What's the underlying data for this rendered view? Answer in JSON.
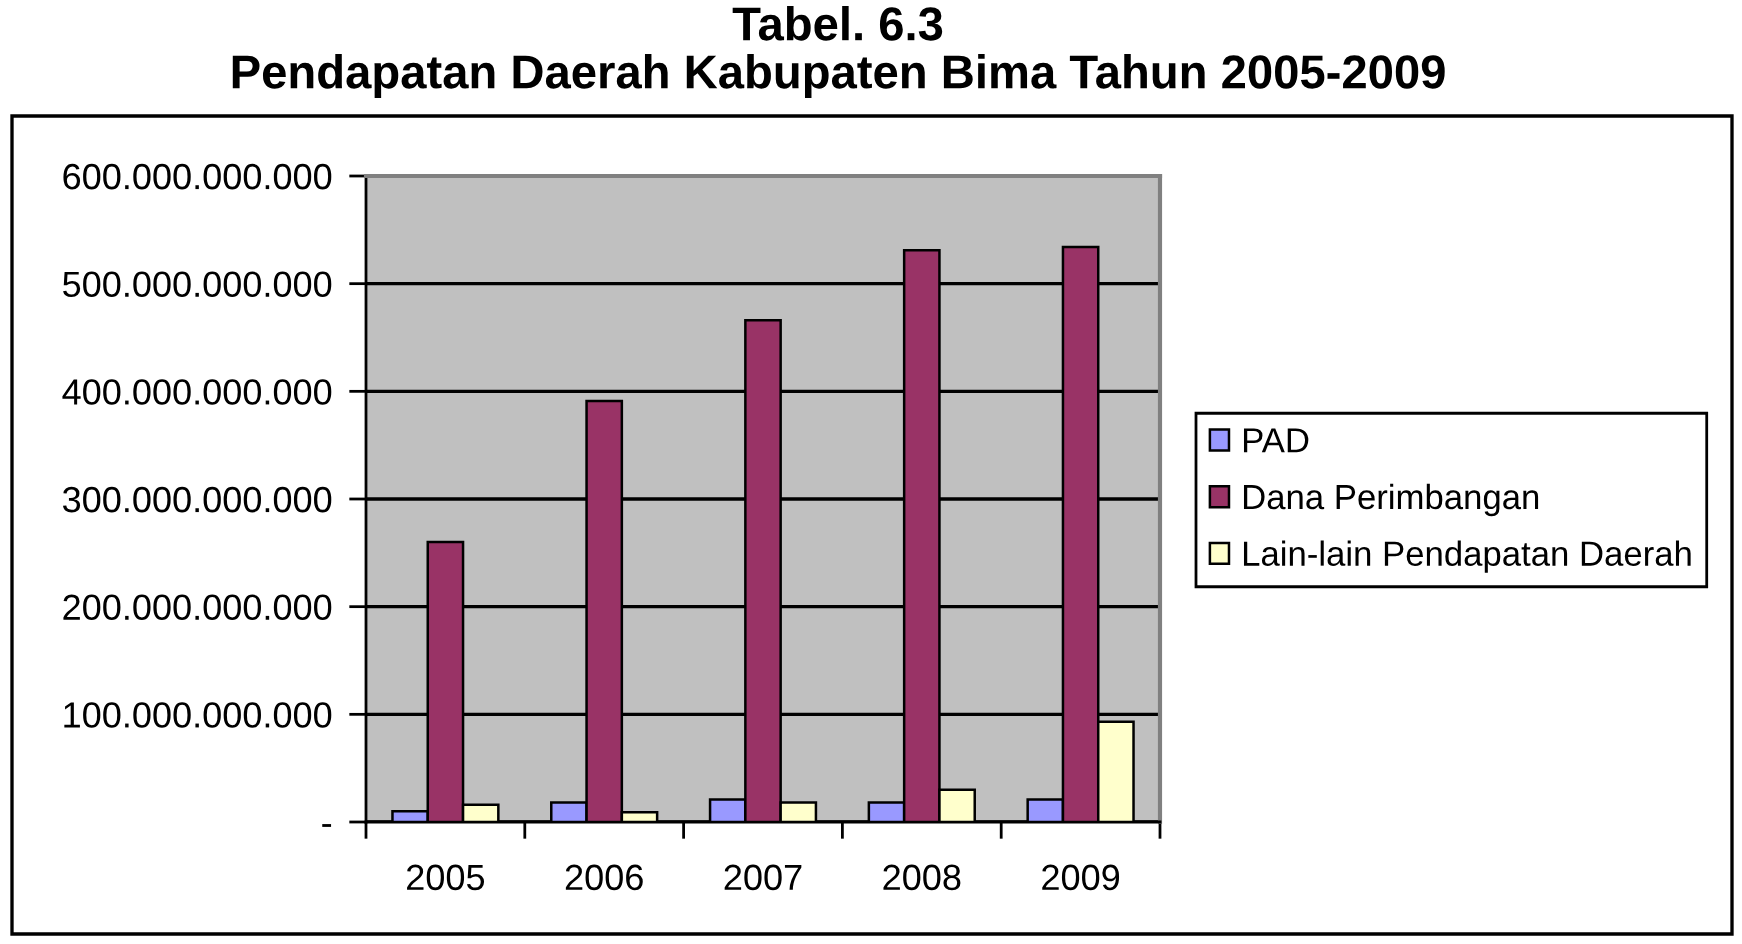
{
  "chart_data": {
    "type": "bar",
    "title": "Tabel. 6.3",
    "subtitle": "Pendapatan Daerah Kabupaten Bima Tahun 2005-2009",
    "categories": [
      "2005",
      "2006",
      "2007",
      "2008",
      "2009"
    ],
    "series": [
      {
        "name": "PAD",
        "color": "#9999ff",
        "values": [
          10000000000,
          18000000000,
          21000000000,
          18000000000,
          21000000000
        ]
      },
      {
        "name": "Dana Perimbangan",
        "color": "#993366",
        "values": [
          260000000000,
          391000000000,
          466000000000,
          531000000000,
          534000000000
        ]
      },
      {
        "name": "Lain-lain Pendapatan Daerah",
        "color": "#ffffcc",
        "values": [
          16000000000,
          9000000000,
          18000000000,
          30000000000,
          93000000000
        ]
      }
    ],
    "ylim": [
      0,
      600000000000
    ],
    "yticks": [
      {
        "value": 0,
        "label": "-"
      },
      {
        "value": 100000000000,
        "label": "100.000.000.000"
      },
      {
        "value": 200000000000,
        "label": "200.000.000.000"
      },
      {
        "value": 300000000000,
        "label": "300.000.000.000"
      },
      {
        "value": 400000000000,
        "label": "400.000.000.000"
      },
      {
        "value": 500000000000,
        "label": "500.000.000.000"
      },
      {
        "value": 600000000000,
        "label": "600.000.000.000"
      }
    ],
    "grid": "y",
    "legend": "right"
  }
}
